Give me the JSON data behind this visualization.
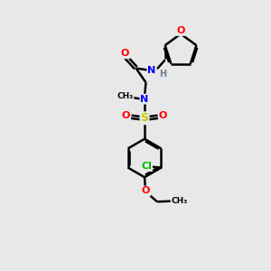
{
  "background_color": "#e8e8e8",
  "bond_color": "#000000",
  "atom_colors": {
    "O": "#ff0000",
    "N": "#0000ff",
    "S": "#cccc00",
    "Cl": "#00bb00",
    "H": "#708090",
    "C": "#000000"
  }
}
